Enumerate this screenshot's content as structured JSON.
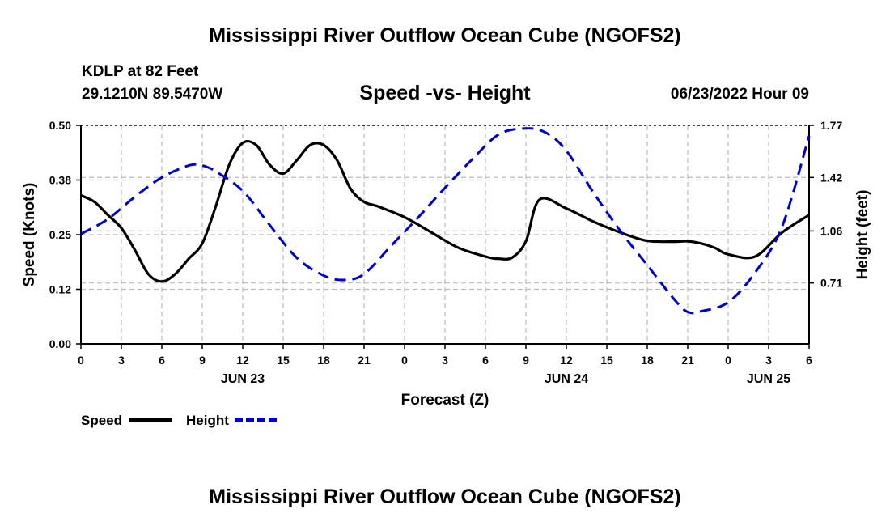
{
  "header": {
    "title": "Mississippi River Outflow Ocean Cube (NGOFS2)",
    "station": "KDLP at 82 Feet",
    "coordinates": "29.1210N  89.5470W",
    "subtitle": "Speed -vs- Height",
    "datetime": "06/23/2022 Hour 09"
  },
  "footer": {
    "title": "Mississippi River Outflow Ocean Cube (NGOFS2)"
  },
  "legend": {
    "speed_label": "Speed",
    "height_label": "Height"
  },
  "chart_data": {
    "type": "line",
    "title": "Speed -vs- Height",
    "xlabel": "Forecast (Z)",
    "ylabel": "Speed (Knots)",
    "y2label": "Height (feet)",
    "xlim": [
      0,
      54
    ],
    "ylim": [
      0,
      0.5
    ],
    "y2lim": [
      0.3,
      1.77
    ],
    "grid": true,
    "x_ticks": [
      0,
      3,
      6,
      9,
      12,
      15,
      18,
      21,
      24,
      27,
      30,
      33,
      36,
      39,
      42,
      45,
      48,
      51,
      54
    ],
    "x_tick_labels": [
      "0",
      "3",
      "6",
      "9",
      "12",
      "15",
      "18",
      "21",
      "0",
      "3",
      "6",
      "9",
      "12",
      "15",
      "18",
      "21",
      "0",
      "3",
      "6"
    ],
    "date_labels": [
      {
        "x": 12,
        "label": "JUN 23"
      },
      {
        "x": 36,
        "label": "JUN 24"
      },
      {
        "x": 51,
        "label": "JUN 25"
      }
    ],
    "y_ticks": [
      0,
      0.125,
      0.25,
      0.375,
      0.5
    ],
    "y_tick_labels": [
      "0.00",
      "0.12",
      "0.25",
      "0.38",
      "0.50"
    ],
    "y2_ticks": [
      0.71,
      1.06,
      1.42,
      1.77
    ],
    "y2_tick_labels": [
      "0.71",
      "1.06",
      "1.42",
      "1.77"
    ],
    "series": [
      {
        "name": "Speed",
        "axis": "left",
        "color": "#000000",
        "style": "solid",
        "x": [
          0,
          1,
          2,
          3,
          4,
          5,
          6,
          7,
          8,
          9,
          10,
          11,
          12,
          13,
          14,
          15,
          16,
          17,
          18,
          19,
          20,
          21,
          22,
          24,
          26,
          28,
          30,
          31,
          32,
          33,
          34,
          36,
          38,
          40,
          42,
          44,
          45,
          46,
          47,
          48,
          50,
          52,
          54
        ],
        "y": [
          0.34,
          0.325,
          0.295,
          0.265,
          0.215,
          0.16,
          0.143,
          0.16,
          0.195,
          0.23,
          0.315,
          0.41,
          0.46,
          0.455,
          0.41,
          0.39,
          0.42,
          0.455,
          0.455,
          0.42,
          0.355,
          0.325,
          0.315,
          0.29,
          0.255,
          0.22,
          0.2,
          0.195,
          0.198,
          0.235,
          0.33,
          0.31,
          0.28,
          0.255,
          0.236,
          0.234,
          0.235,
          0.23,
          0.22,
          0.205,
          0.2,
          0.255,
          0.295
        ]
      },
      {
        "name": "Height",
        "axis": "right",
        "color": "#0000cc",
        "style": "dashed",
        "x": [
          0,
          2,
          4,
          6,
          8,
          9,
          10,
          12,
          14,
          16,
          18,
          19.5,
          21,
          23,
          25,
          27,
          29,
          31,
          33,
          34.5,
          36,
          38,
          40,
          42,
          44,
          45,
          46,
          48,
          50,
          52,
          54
        ],
        "y": [
          1.04,
          1.14,
          1.29,
          1.42,
          1.5,
          1.5,
          1.46,
          1.33,
          1.1,
          0.88,
          0.76,
          0.73,
          0.77,
          0.96,
          1.15,
          1.35,
          1.54,
          1.71,
          1.75,
          1.72,
          1.6,
          1.32,
          1.06,
          0.83,
          0.6,
          0.515,
          0.52,
          0.58,
          0.78,
          1.09,
          1.7
        ]
      }
    ]
  }
}
